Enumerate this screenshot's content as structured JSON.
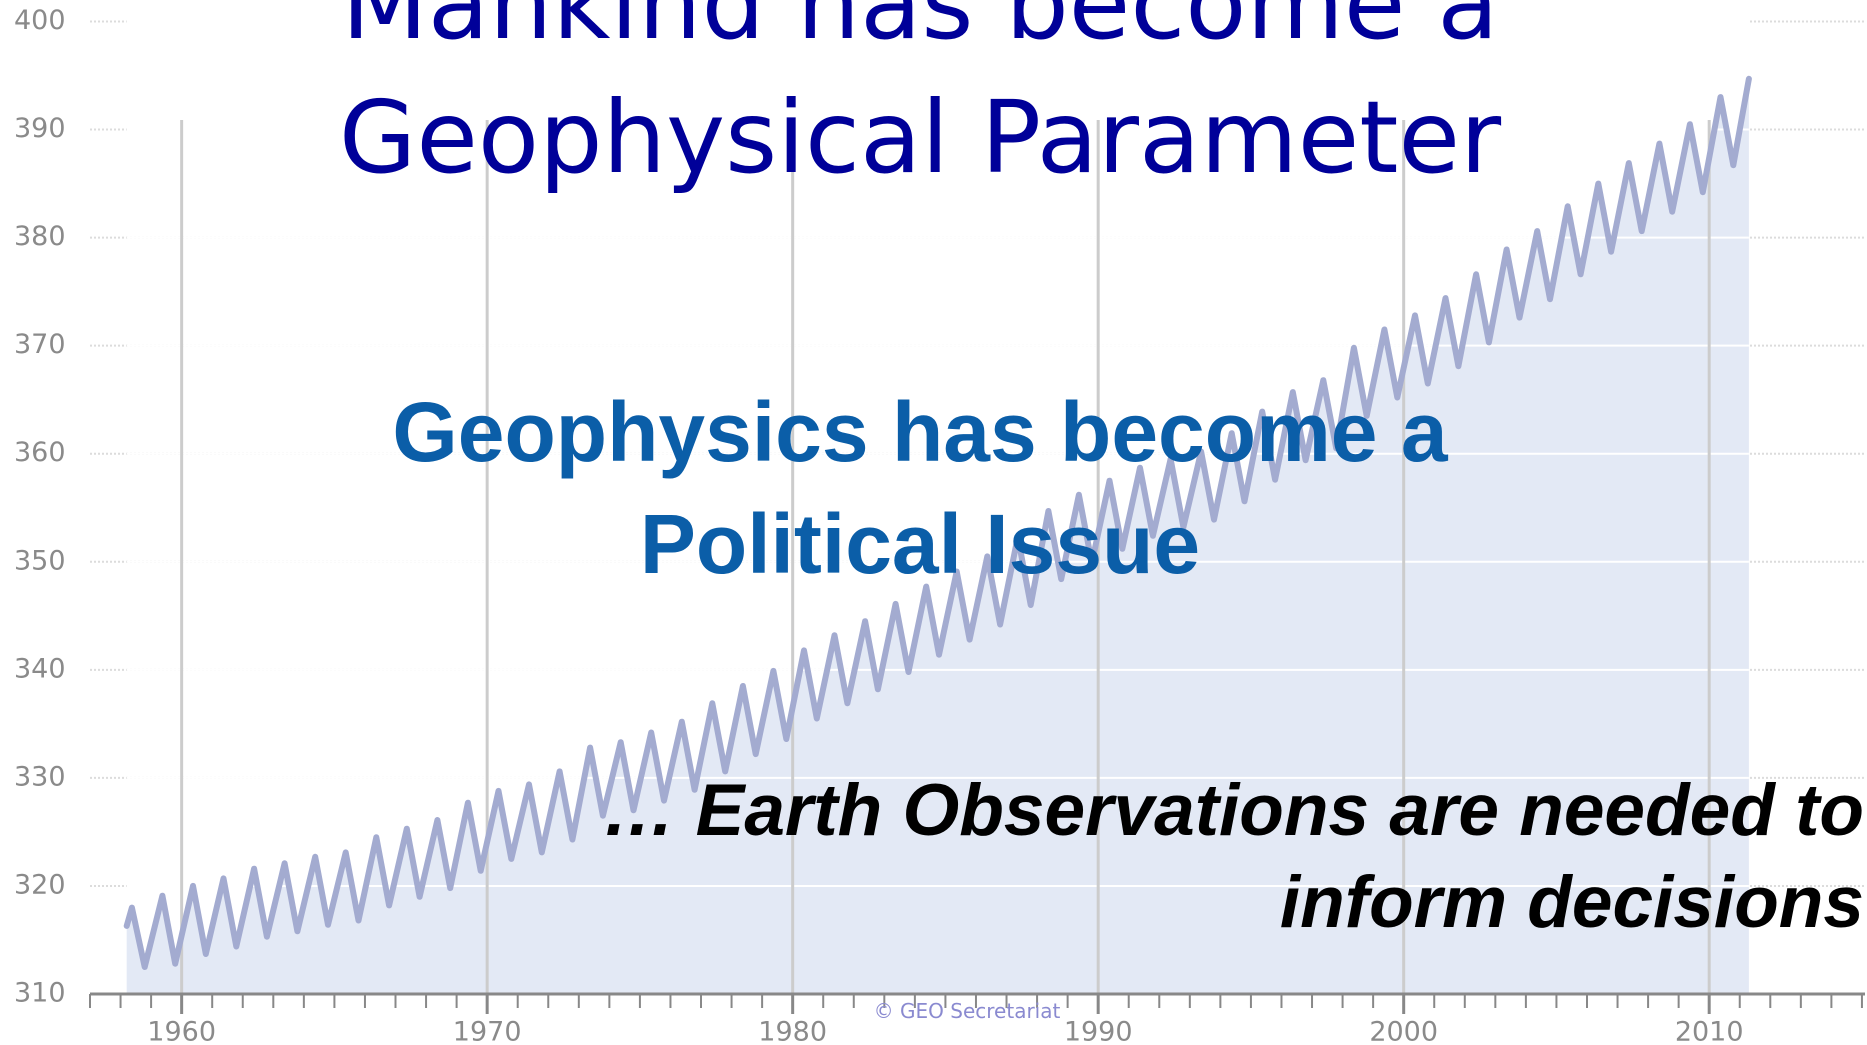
{
  "chart_data": {
    "type": "line",
    "title": [
      "Mankind has become a",
      "Geophysical Parameter"
    ],
    "subtitle": [
      "Geophysics has become a",
      "Political Issue"
    ],
    "annotation": [
      "… Earth Observations are needed to",
      "inform decisions"
    ],
    "credit": "© GEO Secretariat",
    "xlim": [
      1957,
      2015.1
    ],
    "xticks": [
      1960,
      1970,
      1980,
      1990,
      2000,
      2010
    ],
    "xminorticks": [
      1957,
      1958,
      1959,
      1960,
      1961,
      1962,
      1963,
      1964,
      1965,
      1966,
      1967,
      1968,
      1969,
      1970,
      1971,
      1972,
      1973,
      1974,
      1975,
      1976,
      1977,
      1978,
      1979,
      1980,
      1981,
      1982,
      1983,
      1984,
      1985,
      1986,
      1987,
      1988,
      1989,
      1990,
      1991,
      1992,
      1993,
      1994,
      1995,
      1996,
      1997,
      1998,
      1999,
      2000,
      2001,
      2002,
      2003,
      2004,
      2005,
      2006,
      2007,
      2008,
      2009,
      2010,
      2011,
      2012,
      2013,
      2014,
      2015
    ],
    "ylim": [
      310,
      400
    ],
    "yticks": [
      310,
      320,
      330,
      340,
      350,
      360,
      370,
      380,
      390,
      400
    ],
    "grid": true,
    "series": [
      {
        "color": "#a3abd0",
        "fill": "#e3e9f5",
        "x": [
          1958.2,
          1958.37,
          1958.79,
          1959.37,
          1959.79,
          1960.37,
          1960.79,
          1961.37,
          1961.79,
          1962.37,
          1962.79,
          1963.37,
          1963.79,
          1964.37,
          1964.79,
          1965.37,
          1965.79,
          1966.37,
          1966.79,
          1967.37,
          1967.79,
          1968.37,
          1968.79,
          1969.37,
          1969.79,
          1970.37,
          1970.79,
          1971.37,
          1971.79,
          1972.37,
          1972.79,
          1973.37,
          1973.79,
          1974.37,
          1974.79,
          1975.37,
          1975.79,
          1976.37,
          1976.79,
          1977.37,
          1977.79,
          1978.37,
          1978.79,
          1979.37,
          1979.79,
          1980.37,
          1980.79,
          1981.37,
          1981.79,
          1982.37,
          1982.79,
          1983.37,
          1983.79,
          1984.37,
          1984.79,
          1985.37,
          1985.79,
          1986.37,
          1986.79,
          1987.37,
          1987.79,
          1988.37,
          1988.79,
          1989.37,
          1989.79,
          1990.37,
          1990.79,
          1991.37,
          1991.79,
          1992.37,
          1992.79,
          1993.37,
          1993.79,
          1994.37,
          1994.79,
          1995.37,
          1995.79,
          1996.37,
          1996.79,
          1997.37,
          1997.79,
          1998.37,
          1998.79,
          1999.37,
          1999.79,
          2000.37,
          2000.79,
          2001.37,
          2001.79,
          2002.37,
          2002.79,
          2003.37,
          2003.79,
          2004.37,
          2004.79,
          2005.37,
          2005.79,
          2006.37,
          2006.79,
          2007.37,
          2007.79,
          2008.37,
          2008.79,
          2009.37,
          2009.79,
          2010.37,
          2010.79,
          2011.3
        ],
        "values": [
          316.3,
          318.0,
          312.5,
          319.1,
          312.8,
          320.0,
          313.7,
          320.7,
          314.4,
          321.6,
          315.3,
          322.1,
          315.8,
          322.7,
          316.4,
          323.1,
          316.8,
          324.5,
          318.2,
          325.3,
          319.0,
          326.1,
          319.8,
          327.7,
          321.4,
          328.8,
          322.5,
          329.4,
          323.1,
          330.6,
          324.3,
          332.8,
          326.5,
          333.3,
          327.0,
          334.2,
          327.9,
          335.2,
          328.9,
          336.9,
          330.6,
          338.5,
          332.2,
          339.9,
          333.6,
          341.8,
          335.5,
          343.2,
          336.9,
          344.5,
          338.2,
          346.1,
          339.8,
          347.7,
          341.4,
          349.1,
          342.8,
          350.5,
          344.2,
          352.3,
          346.0,
          354.7,
          348.4,
          356.2,
          349.9,
          357.5,
          351.2,
          358.7,
          352.4,
          359.5,
          353.2,
          360.2,
          353.9,
          361.9,
          355.6,
          363.9,
          357.6,
          365.7,
          359.4,
          366.8,
          360.5,
          369.8,
          363.5,
          371.5,
          365.2,
          372.8,
          366.5,
          374.4,
          368.1,
          376.6,
          370.3,
          378.9,
          372.6,
          380.6,
          374.3,
          382.9,
          376.6,
          385.0,
          378.7,
          386.9,
          380.6,
          388.7,
          382.4,
          390.5,
          384.2,
          393.0,
          386.7,
          394.7
        ]
      }
    ]
  }
}
